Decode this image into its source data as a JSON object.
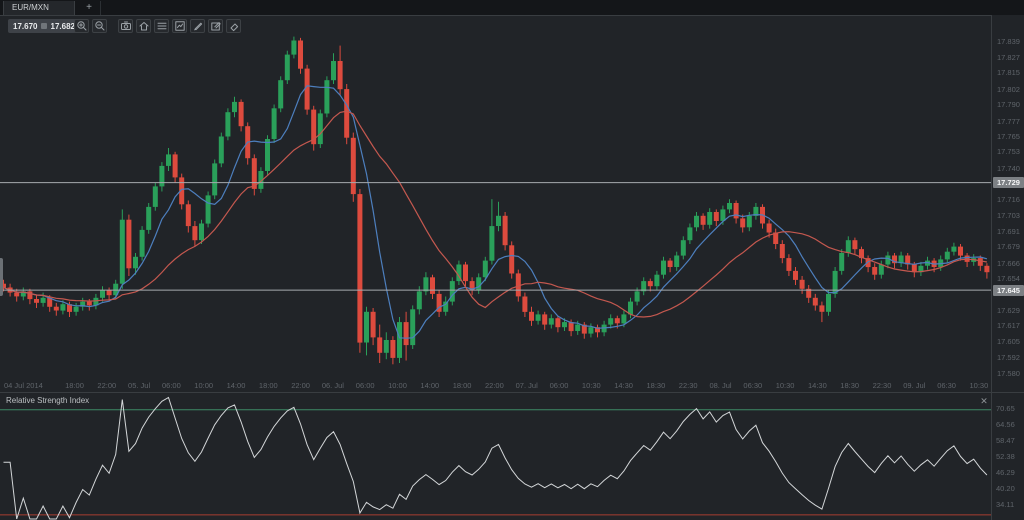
{
  "window": {
    "tab_title": "EUR/MXN",
    "new_tab_label": "+"
  },
  "toolbar": {
    "bid": "17.670",
    "ask": "17.682",
    "buttons": [
      {
        "id": "zoom-in",
        "title": "Zoom in"
      },
      {
        "id": "zoom-out",
        "title": "Zoom out"
      },
      {
        "id": "snapshot",
        "title": "Snapshot"
      },
      {
        "id": "home",
        "title": "Reset view"
      },
      {
        "id": "indicators",
        "title": "Indicators"
      },
      {
        "id": "chart-layout",
        "title": "Chart layout"
      },
      {
        "id": "draw",
        "title": "Draw"
      },
      {
        "id": "edit",
        "title": "Edit chart"
      },
      {
        "id": "eraser",
        "title": "Remove drawings"
      }
    ]
  },
  "colors": {
    "candle_up": "#2aa05a",
    "candle_down": "#dd4b3e",
    "ma_fast": "#4d7fbe",
    "ma_slow": "#c4584f",
    "level_line": "#a6aaae",
    "badge_bg": "#7c8084",
    "rsi_line": "#d3d6d8",
    "rsi_overbought": "#3d8a66",
    "rsi_oversold": "#83362e"
  },
  "chart_data": {
    "type": "candlestick",
    "instrument": "EUR/MXN",
    "price_axis_ticks": [
      "17.839",
      "17.827",
      "17.815",
      "17.802",
      "17.790",
      "17.777",
      "17.765",
      "17.753",
      "17.740",
      "17.728",
      "17.716",
      "17.703",
      "17.691",
      "17.679",
      "17.666",
      "17.654",
      "17.642",
      "17.629",
      "17.617",
      "17.605",
      "17.592",
      "17.580"
    ],
    "price_axis_range": {
      "min": 17.58,
      "max": 17.839
    },
    "time_axis_ticks": [
      "04 Jul 2014",
      "18:00",
      "22:00",
      "05. Jul",
      "06:00",
      "10:00",
      "14:00",
      "18:00",
      "22:00",
      "06. Jul",
      "06:00",
      "10:00",
      "14:00",
      "18:00",
      "22:00",
      "07. Jul",
      "06:00",
      "10:30",
      "14:30",
      "18:30",
      "22:30",
      "08. Jul",
      "06:30",
      "10:30",
      "14:30",
      "18:30",
      "22:30",
      "09. Jul",
      "06:30",
      "10:30"
    ],
    "level_lines": [
      {
        "price": 17.729,
        "label": "17.729"
      },
      {
        "price": 17.645,
        "label": "17.645"
      }
    ],
    "candles": [
      [
        17.65,
        17.653,
        17.644,
        17.647
      ],
      [
        17.647,
        17.65,
        17.64,
        17.643
      ],
      [
        17.643,
        17.646,
        17.636,
        17.64
      ],
      [
        17.64,
        17.647,
        17.637,
        17.644
      ],
      [
        17.644,
        17.646,
        17.634,
        17.638
      ],
      [
        17.638,
        17.641,
        17.631,
        17.635
      ],
      [
        17.635,
        17.643,
        17.632,
        17.639
      ],
      [
        17.639,
        17.641,
        17.628,
        17.632
      ],
      [
        17.632,
        17.635,
        17.625,
        17.629
      ],
      [
        17.629,
        17.637,
        17.626,
        17.634
      ],
      [
        17.634,
        17.636,
        17.624,
        17.628
      ],
      [
        17.628,
        17.635,
        17.625,
        17.632
      ],
      [
        17.632,
        17.639,
        17.629,
        17.636
      ],
      [
        17.636,
        17.638,
        17.629,
        17.633
      ],
      [
        17.633,
        17.642,
        17.63,
        17.639
      ],
      [
        17.639,
        17.648,
        17.636,
        17.645
      ],
      [
        17.645,
        17.647,
        17.637,
        17.641
      ],
      [
        17.641,
        17.653,
        17.638,
        17.65
      ],
      [
        17.65,
        17.708,
        17.646,
        17.7
      ],
      [
        17.7,
        17.704,
        17.656,
        17.662
      ],
      [
        17.662,
        17.674,
        17.657,
        17.671
      ],
      [
        17.671,
        17.695,
        17.668,
        17.692
      ],
      [
        17.692,
        17.713,
        17.689,
        17.71
      ],
      [
        17.71,
        17.729,
        17.707,
        17.726
      ],
      [
        17.726,
        17.745,
        17.722,
        17.742
      ],
      [
        17.742,
        17.756,
        17.738,
        17.751
      ],
      [
        17.751,
        17.753,
        17.729,
        17.733
      ],
      [
        17.733,
        17.736,
        17.708,
        17.712
      ],
      [
        17.712,
        17.715,
        17.69,
        17.695
      ],
      [
        17.695,
        17.699,
        17.679,
        17.684
      ],
      [
        17.684,
        17.7,
        17.681,
        17.697
      ],
      [
        17.697,
        17.722,
        17.694,
        17.719
      ],
      [
        17.719,
        17.747,
        17.716,
        17.744
      ],
      [
        17.744,
        17.768,
        17.741,
        17.765
      ],
      [
        17.765,
        17.787,
        17.762,
        17.784
      ],
      [
        17.784,
        17.796,
        17.78,
        17.792
      ],
      [
        17.792,
        17.794,
        17.769,
        17.773
      ],
      [
        17.773,
        17.776,
        17.743,
        17.748
      ],
      [
        17.748,
        17.751,
        17.719,
        17.724
      ],
      [
        17.724,
        17.741,
        17.721,
        17.738
      ],
      [
        17.738,
        17.766,
        17.735,
        17.763
      ],
      [
        17.763,
        17.79,
        17.76,
        17.787
      ],
      [
        17.787,
        17.812,
        17.784,
        17.809
      ],
      [
        17.809,
        17.832,
        17.806,
        17.829
      ],
      [
        17.829,
        17.843,
        17.826,
        17.84
      ],
      [
        17.84,
        17.842,
        17.814,
        17.818
      ],
      [
        17.818,
        17.821,
        17.782,
        17.786
      ],
      [
        17.786,
        17.789,
        17.754,
        17.759
      ],
      [
        17.759,
        17.786,
        17.756,
        17.783
      ],
      [
        17.783,
        17.812,
        17.78,
        17.809
      ],
      [
        17.809,
        17.83,
        17.806,
        17.824
      ],
      [
        17.824,
        17.836,
        17.797,
        17.802
      ],
      [
        17.802,
        17.806,
        17.759,
        17.764
      ],
      [
        17.764,
        17.768,
        17.714,
        17.72
      ],
      [
        17.72,
        17.724,
        17.596,
        17.604
      ],
      [
        17.604,
        17.632,
        17.594,
        17.628
      ],
      [
        17.628,
        17.631,
        17.602,
        17.608
      ],
      [
        17.608,
        17.618,
        17.588,
        17.596
      ],
      [
        17.596,
        17.612,
        17.591,
        17.606
      ],
      [
        17.606,
        17.609,
        17.587,
        17.592
      ],
      [
        17.592,
        17.624,
        17.588,
        17.62
      ],
      [
        17.62,
        17.628,
        17.59,
        17.602
      ],
      [
        17.602,
        17.633,
        17.599,
        17.63
      ],
      [
        17.63,
        17.648,
        17.626,
        17.644
      ],
      [
        17.644,
        17.659,
        17.641,
        17.655
      ],
      [
        17.655,
        17.657,
        17.638,
        17.642
      ],
      [
        17.642,
        17.645,
        17.624,
        17.628
      ],
      [
        17.628,
        17.64,
        17.625,
        17.636
      ],
      [
        17.636,
        17.655,
        17.633,
        17.652
      ],
      [
        17.652,
        17.668,
        17.649,
        17.665
      ],
      [
        17.665,
        17.667,
        17.648,
        17.652
      ],
      [
        17.652,
        17.655,
        17.641,
        17.645
      ],
      [
        17.645,
        17.658,
        17.642,
        17.655
      ],
      [
        17.655,
        17.671,
        17.652,
        17.668
      ],
      [
        17.668,
        17.716,
        17.665,
        17.695
      ],
      [
        17.695,
        17.714,
        17.691,
        17.703
      ],
      [
        17.703,
        17.706,
        17.676,
        17.68
      ],
      [
        17.68,
        17.683,
        17.654,
        17.658
      ],
      [
        17.658,
        17.661,
        17.636,
        17.64
      ],
      [
        17.64,
        17.643,
        17.624,
        17.628
      ],
      [
        17.628,
        17.632,
        17.617,
        17.621
      ],
      [
        17.621,
        17.629,
        17.618,
        17.626
      ],
      [
        17.626,
        17.628,
        17.614,
        17.618
      ],
      [
        17.618,
        17.626,
        17.615,
        17.623
      ],
      [
        17.623,
        17.625,
        17.612,
        17.616
      ],
      [
        17.616,
        17.623,
        17.613,
        17.62
      ],
      [
        17.62,
        17.622,
        17.609,
        17.613
      ],
      [
        17.613,
        17.621,
        17.61,
        17.618
      ],
      [
        17.618,
        17.62,
        17.607,
        17.611
      ],
      [
        17.611,
        17.619,
        17.608,
        17.616
      ],
      [
        17.616,
        17.618,
        17.608,
        17.612
      ],
      [
        17.612,
        17.621,
        17.609,
        17.618
      ],
      [
        17.618,
        17.626,
        17.615,
        17.623
      ],
      [
        17.623,
        17.625,
        17.615,
        17.619
      ],
      [
        17.619,
        17.629,
        17.616,
        17.626
      ],
      [
        17.626,
        17.639,
        17.623,
        17.636
      ],
      [
        17.636,
        17.647,
        17.633,
        17.644
      ],
      [
        17.644,
        17.655,
        17.641,
        17.652
      ],
      [
        17.652,
        17.654,
        17.644,
        17.648
      ],
      [
        17.648,
        17.66,
        17.645,
        17.657
      ],
      [
        17.657,
        17.671,
        17.654,
        17.668
      ],
      [
        17.668,
        17.67,
        17.659,
        17.663
      ],
      [
        17.663,
        17.675,
        17.66,
        17.672
      ],
      [
        17.672,
        17.687,
        17.669,
        17.684
      ],
      [
        17.684,
        17.697,
        17.681,
        17.694
      ],
      [
        17.694,
        17.706,
        17.691,
        17.703
      ],
      [
        17.703,
        17.705,
        17.692,
        17.696
      ],
      [
        17.696,
        17.709,
        17.693,
        17.706
      ],
      [
        17.706,
        17.708,
        17.695,
        17.699
      ],
      [
        17.699,
        17.711,
        17.696,
        17.708
      ],
      [
        17.708,
        17.716,
        17.705,
        17.713
      ],
      [
        17.713,
        17.715,
        17.697,
        17.701
      ],
      [
        17.701,
        17.704,
        17.69,
        17.694
      ],
      [
        17.694,
        17.706,
        17.691,
        17.703
      ],
      [
        17.703,
        17.713,
        17.7,
        17.71
      ],
      [
        17.71,
        17.712,
        17.693,
        17.697
      ],
      [
        17.697,
        17.7,
        17.686,
        17.69
      ],
      [
        17.69,
        17.693,
        17.677,
        17.681
      ],
      [
        17.681,
        17.684,
        17.666,
        17.67
      ],
      [
        17.67,
        17.673,
        17.656,
        17.66
      ],
      [
        17.66,
        17.663,
        17.649,
        17.653
      ],
      [
        17.653,
        17.656,
        17.642,
        17.646
      ],
      [
        17.646,
        17.649,
        17.635,
        17.639
      ],
      [
        17.639,
        17.642,
        17.629,
        17.633
      ],
      [
        17.633,
        17.636,
        17.62,
        17.628
      ],
      [
        17.628,
        17.645,
        17.625,
        17.642
      ],
      [
        17.642,
        17.663,
        17.639,
        17.66
      ],
      [
        17.66,
        17.677,
        17.657,
        17.674
      ],
      [
        17.674,
        17.687,
        17.671,
        17.684
      ],
      [
        17.684,
        17.686,
        17.673,
        17.677
      ],
      [
        17.677,
        17.679,
        17.666,
        17.67
      ],
      [
        17.67,
        17.672,
        17.659,
        17.663
      ],
      [
        17.663,
        17.666,
        17.653,
        17.657
      ],
      [
        17.657,
        17.668,
        17.654,
        17.665
      ],
      [
        17.665,
        17.675,
        17.662,
        17.672
      ],
      [
        17.672,
        17.674,
        17.662,
        17.666
      ],
      [
        17.666,
        17.675,
        17.663,
        17.672
      ],
      [
        17.672,
        17.674,
        17.661,
        17.665
      ],
      [
        17.665,
        17.667,
        17.655,
        17.659
      ],
      [
        17.659,
        17.667,
        17.656,
        17.664
      ],
      [
        17.664,
        17.671,
        17.661,
        17.668
      ],
      [
        17.668,
        17.67,
        17.659,
        17.663
      ],
      [
        17.663,
        17.672,
        17.66,
        17.669
      ],
      [
        17.669,
        17.678,
        17.666,
        17.675
      ],
      [
        17.675,
        17.682,
        17.672,
        17.679
      ],
      [
        17.679,
        17.681,
        17.668,
        17.672
      ],
      [
        17.672,
        17.674,
        17.663,
        17.667
      ],
      [
        17.667,
        17.673,
        17.664,
        17.67
      ],
      [
        17.67,
        17.672,
        17.66,
        17.664
      ],
      [
        17.664,
        17.666,
        17.654,
        17.659
      ]
    ],
    "indicators": {
      "sma_fast": {
        "period": 7
      },
      "sma_slow": {
        "period": 20
      },
      "rsi": {
        "title": "Relative Strength Index",
        "close_label": "✕",
        "period": 14,
        "overbought": 70,
        "oversold": 30,
        "axis_ticks": [
          "70.65",
          "64.56",
          "58.47",
          "52.38",
          "46.29",
          "40.20",
          "34.11"
        ]
      }
    },
    "legend_position": "none",
    "grid": false
  }
}
